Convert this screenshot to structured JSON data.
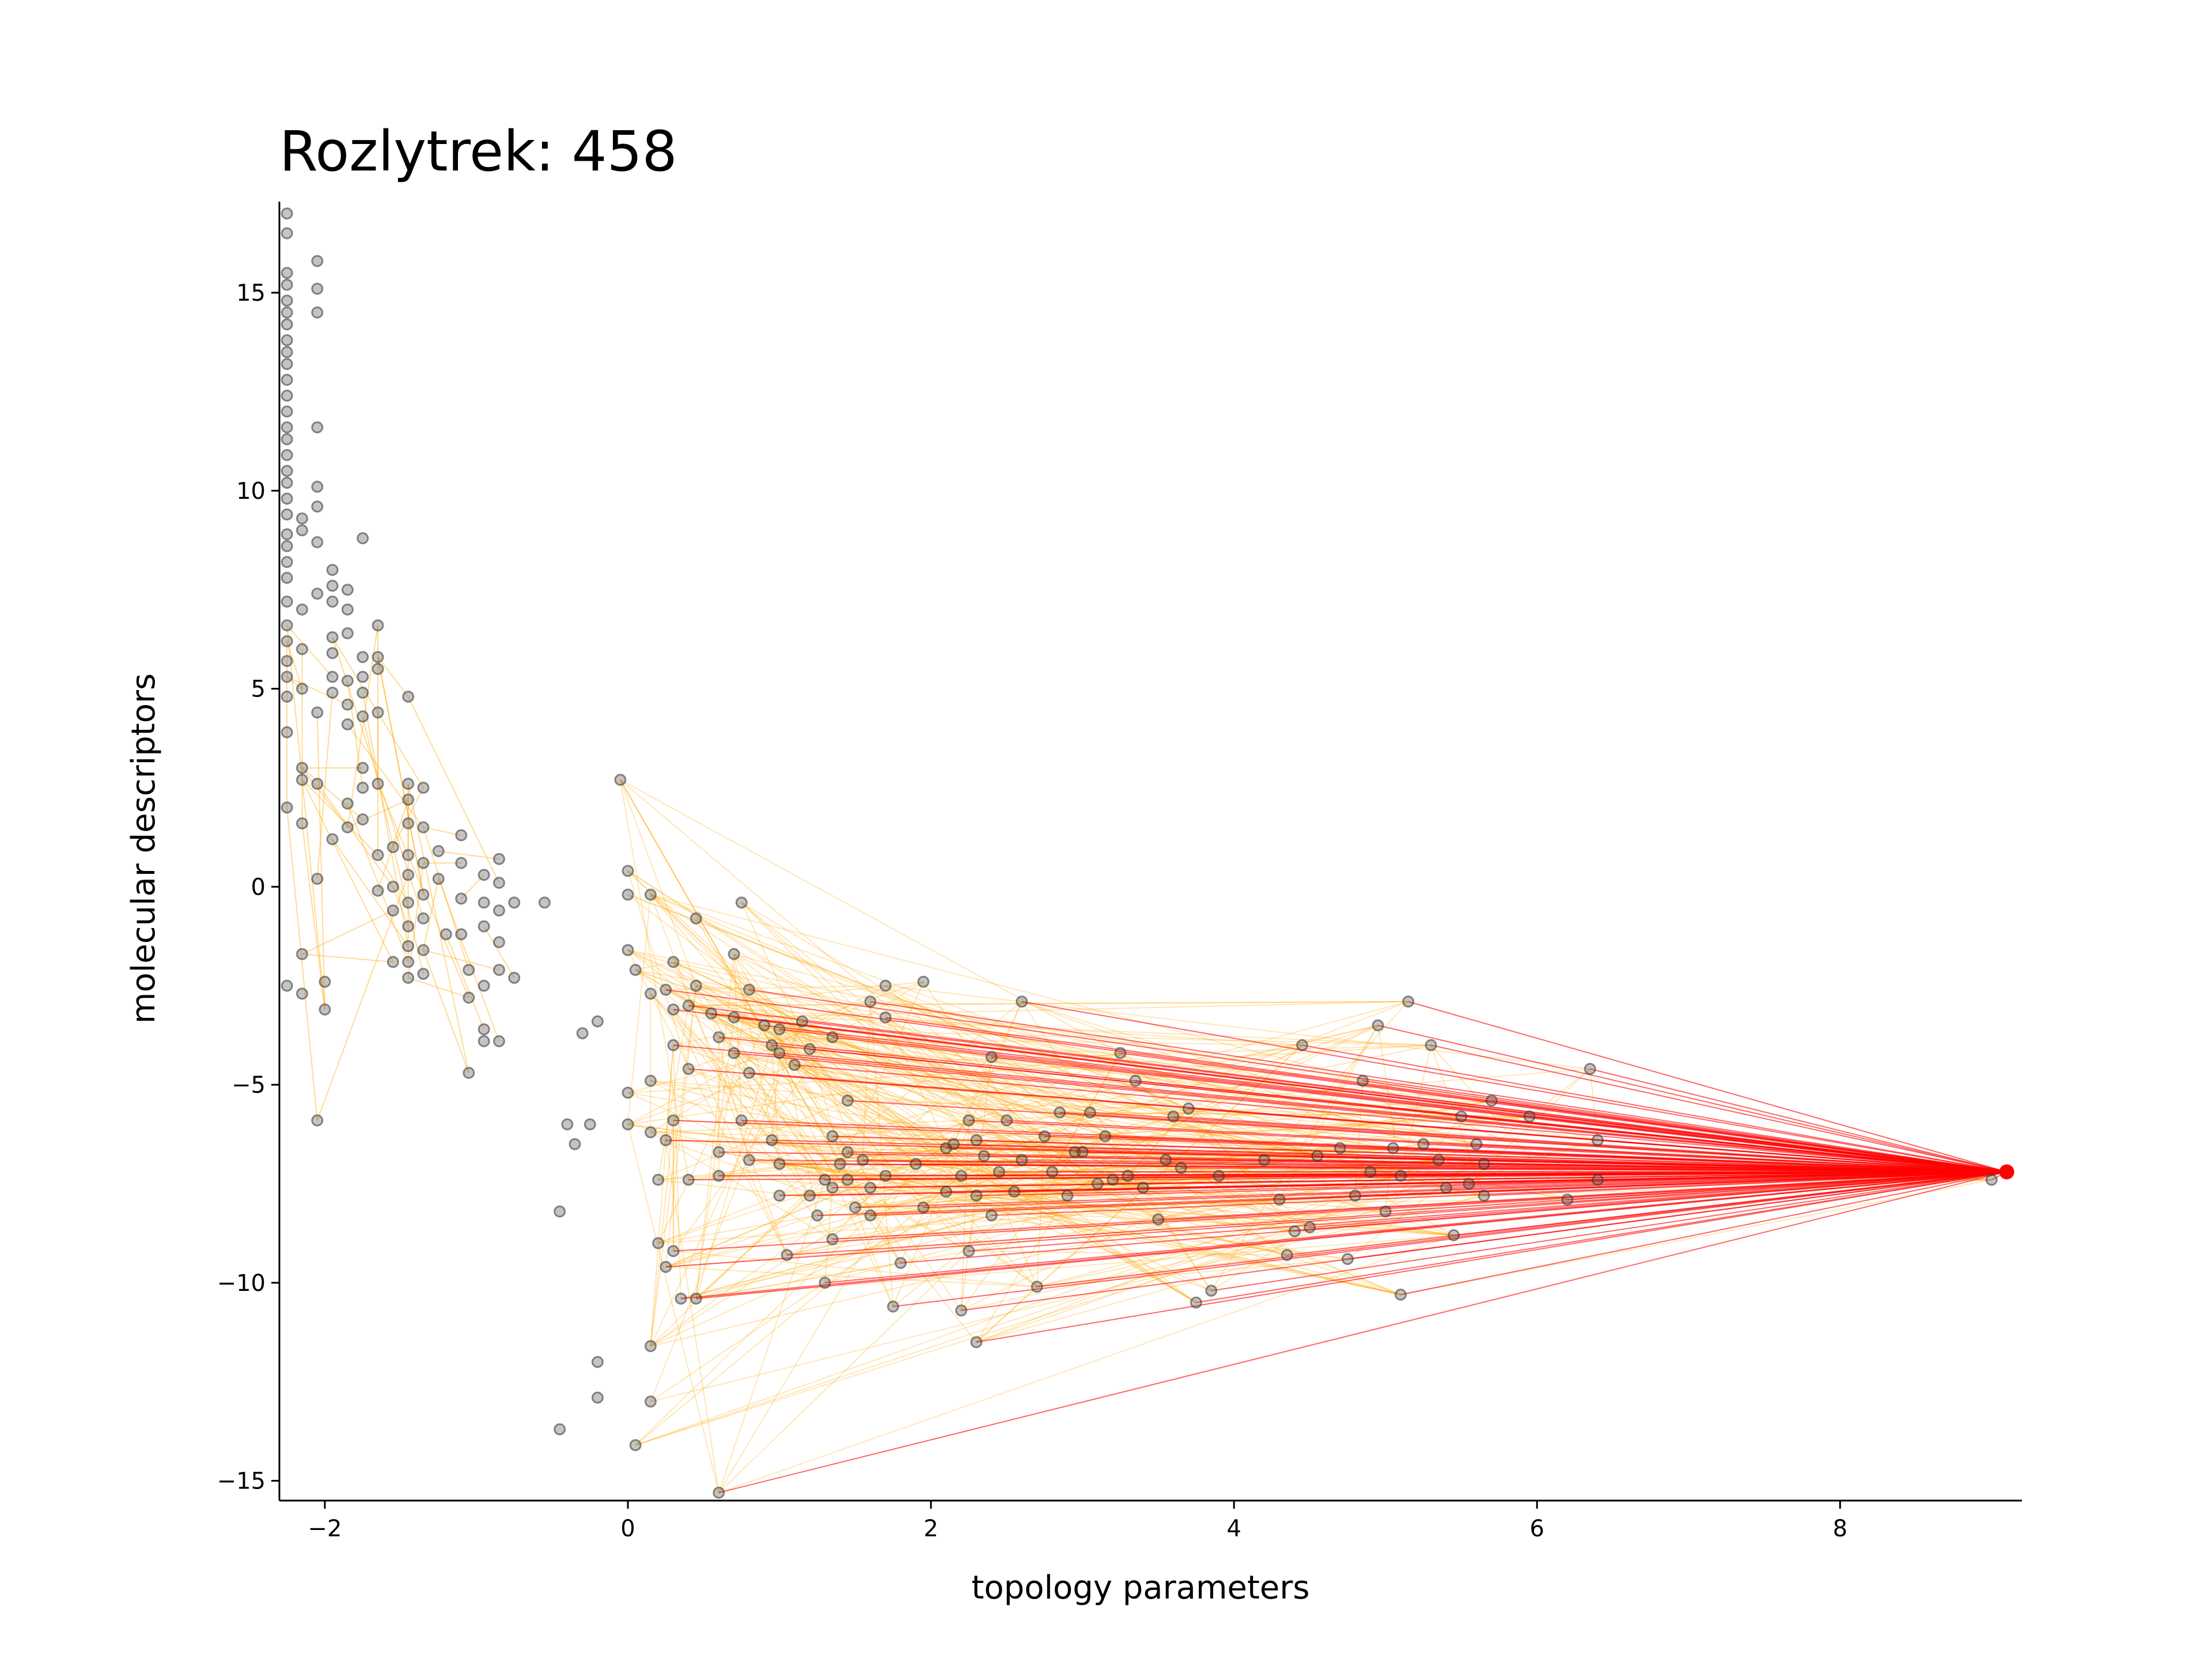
{
  "chart_data": {
    "type": "scatter",
    "title": "Rozlytrek: 458",
    "xlabel": "topology parameters",
    "ylabel": "molecular descriptors",
    "xlim": [
      -2.3,
      9.2
    ],
    "ylim": [
      -15.5,
      17.3
    ],
    "x_ticks": [
      -2,
      0,
      2,
      4,
      6,
      8
    ],
    "y_ticks": [
      15,
      10,
      5,
      0,
      -5,
      -10,
      -15
    ],
    "x_tick_labels": [
      "−2",
      "0",
      "2",
      "4",
      "6",
      "8"
    ],
    "y_tick_labels": [
      "15",
      "10",
      "5",
      "0",
      "−5",
      "−10",
      "−15"
    ],
    "grid": false,
    "legend": "none",
    "colors": {
      "points": "#000000",
      "highlight": "#ff0000",
      "edges_weak": "#ffa500",
      "edges_strong": "#ff0000"
    },
    "highlight_point": {
      "x": 9.1,
      "y": -7.2
    },
    "series": [
      {
        "values": [
          [
            -2.25,
            17.0
          ],
          [
            -2.25,
            16.5
          ],
          [
            -2.25,
            15.5
          ],
          [
            -2.25,
            15.2
          ],
          [
            -2.25,
            14.8
          ],
          [
            -2.25,
            14.5
          ],
          [
            -2.25,
            14.2
          ],
          [
            -2.25,
            13.8
          ],
          [
            -2.25,
            13.5
          ],
          [
            -2.25,
            13.2
          ],
          [
            -2.25,
            12.8
          ],
          [
            -2.25,
            12.4
          ],
          [
            -2.25,
            12.0
          ],
          [
            -2.25,
            11.6
          ],
          [
            -2.25,
            11.3
          ],
          [
            -2.25,
            10.9
          ],
          [
            -2.25,
            10.5
          ],
          [
            -2.25,
            10.2
          ],
          [
            -2.25,
            9.8
          ],
          [
            -2.25,
            9.4
          ],
          [
            -2.25,
            8.9
          ],
          [
            -2.25,
            8.6
          ],
          [
            -2.25,
            8.2
          ],
          [
            -2.25,
            7.8
          ],
          [
            -2.25,
            7.2
          ],
          [
            -2.25,
            6.6
          ],
          [
            -2.25,
            6.2
          ],
          [
            -2.25,
            5.7
          ],
          [
            -2.25,
            5.3
          ],
          [
            -2.25,
            4.8
          ],
          [
            -2.25,
            3.9
          ],
          [
            -2.25,
            2.0
          ],
          [
            -2.25,
            -2.5
          ],
          [
            -2.05,
            15.8
          ],
          [
            -2.05,
            15.1
          ],
          [
            -2.05,
            14.5
          ],
          [
            -2.05,
            11.6
          ],
          [
            -2.05,
            10.1
          ],
          [
            -2.05,
            9.6
          ],
          [
            -2.05,
            8.7
          ],
          [
            -2.05,
            7.4
          ],
          [
            -2.05,
            4.4
          ],
          [
            -2.05,
            2.6
          ],
          [
            -2.05,
            0.2
          ],
          [
            -2.05,
            -5.9
          ],
          [
            -2.15,
            9.3
          ],
          [
            -2.15,
            9.0
          ],
          [
            -2.15,
            7.0
          ],
          [
            -2.15,
            6.0
          ],
          [
            -2.15,
            5.0
          ],
          [
            -2.15,
            3.0
          ],
          [
            -2.15,
            2.7
          ],
          [
            -2.15,
            1.6
          ],
          [
            -2.15,
            -1.7
          ],
          [
            -2.15,
            -2.7
          ],
          [
            -1.95,
            8.0
          ],
          [
            -1.95,
            7.6
          ],
          [
            -1.95,
            7.2
          ],
          [
            -1.95,
            6.3
          ],
          [
            -1.95,
            5.9
          ],
          [
            -1.95,
            5.3
          ],
          [
            -1.95,
            4.9
          ],
          [
            -1.95,
            1.2
          ],
          [
            -2.0,
            -2.4
          ],
          [
            -2.0,
            -3.1
          ],
          [
            -1.85,
            7.5
          ],
          [
            -1.85,
            7.0
          ],
          [
            -1.85,
            6.4
          ],
          [
            -1.85,
            5.2
          ],
          [
            -1.85,
            4.6
          ],
          [
            -1.85,
            4.1
          ],
          [
            -1.85,
            2.1
          ],
          [
            -1.85,
            1.5
          ],
          [
            -1.75,
            8.8
          ],
          [
            -1.75,
            5.8
          ],
          [
            -1.75,
            5.3
          ],
          [
            -1.75,
            4.9
          ],
          [
            -1.75,
            4.3
          ],
          [
            -1.75,
            3.0
          ],
          [
            -1.75,
            2.5
          ],
          [
            -1.75,
            1.7
          ],
          [
            -1.65,
            6.6
          ],
          [
            -1.65,
            5.8
          ],
          [
            -1.65,
            5.5
          ],
          [
            -1.65,
            4.4
          ],
          [
            -1.65,
            2.6
          ],
          [
            -1.65,
            0.8
          ],
          [
            -1.65,
            -0.1
          ],
          [
            -1.55,
            1.0
          ],
          [
            -1.55,
            0.0
          ],
          [
            -1.55,
            -1.9
          ],
          [
            -1.55,
            -0.6
          ],
          [
            -1.45,
            2.6
          ],
          [
            -1.45,
            2.2
          ],
          [
            -1.45,
            1.6
          ],
          [
            -1.45,
            0.8
          ],
          [
            -1.45,
            0.3
          ],
          [
            -1.45,
            -0.4
          ],
          [
            -1.45,
            -1.0
          ],
          [
            -1.45,
            -1.5
          ],
          [
            -1.45,
            -1.9
          ],
          [
            -1.45,
            -2.3
          ],
          [
            -1.45,
            4.8
          ],
          [
            -1.35,
            2.5
          ],
          [
            -1.35,
            1.5
          ],
          [
            -1.35,
            0.6
          ],
          [
            -1.35,
            -0.2
          ],
          [
            -1.35,
            -0.8
          ],
          [
            -1.35,
            -1.6
          ],
          [
            -1.35,
            -2.2
          ],
          [
            -1.25,
            0.9
          ],
          [
            -1.25,
            0.2
          ],
          [
            -1.2,
            -1.2
          ],
          [
            -1.1,
            1.3
          ],
          [
            -1.1,
            0.6
          ],
          [
            -1.1,
            -0.3
          ],
          [
            -1.1,
            -1.2
          ],
          [
            -1.05,
            -2.1
          ],
          [
            -1.05,
            -2.8
          ],
          [
            -1.05,
            -4.7
          ],
          [
            -0.95,
            0.3
          ],
          [
            -0.95,
            -0.4
          ],
          [
            -0.95,
            -1.0
          ],
          [
            -0.95,
            -2.5
          ],
          [
            -0.95,
            -3.6
          ],
          [
            -0.95,
            -3.9
          ],
          [
            -0.85,
            0.7
          ],
          [
            -0.85,
            0.1
          ],
          [
            -0.85,
            -0.6
          ],
          [
            -0.85,
            -1.4
          ],
          [
            -0.85,
            -2.1
          ],
          [
            -0.85,
            -3.9
          ],
          [
            -0.75,
            -0.4
          ],
          [
            -0.75,
            -2.3
          ],
          [
            -0.55,
            -0.4
          ],
          [
            -0.4,
            -6.0
          ],
          [
            -0.35,
            -6.5
          ],
          [
            -0.3,
            -3.7
          ],
          [
            -0.25,
            -6.0
          ],
          [
            -0.2,
            -3.4
          ],
          [
            -0.45,
            -8.2
          ],
          [
            -0.45,
            -13.7
          ],
          [
            -0.2,
            -12.0
          ],
          [
            -0.2,
            -12.9
          ],
          [
            -0.05,
            2.7
          ],
          [
            0.0,
            0.4
          ],
          [
            0.0,
            -0.2
          ],
          [
            0.0,
            -1.6
          ],
          [
            0.0,
            -5.2
          ],
          [
            0.0,
            -6.0
          ],
          [
            0.05,
            -2.1
          ],
          [
            0.05,
            -14.1
          ],
          [
            0.15,
            -0.2
          ],
          [
            0.15,
            -2.7
          ],
          [
            0.15,
            -4.9
          ],
          [
            0.15,
            -6.2
          ],
          [
            0.15,
            -11.6
          ],
          [
            0.15,
            -13.0
          ],
          [
            0.2,
            -7.4
          ],
          [
            0.2,
            -9.0
          ],
          [
            0.25,
            -2.6
          ],
          [
            0.25,
            -6.4
          ],
          [
            0.25,
            -9.6
          ],
          [
            0.3,
            -1.9
          ],
          [
            0.3,
            -3.1
          ],
          [
            0.3,
            -4.0
          ],
          [
            0.3,
            -5.9
          ],
          [
            0.3,
            -9.2
          ],
          [
            0.35,
            -10.4
          ],
          [
            0.4,
            -3.0
          ],
          [
            0.4,
            -4.6
          ],
          [
            0.4,
            -7.4
          ],
          [
            0.45,
            -0.8
          ],
          [
            0.45,
            -10.4
          ],
          [
            0.45,
            -2.5
          ],
          [
            0.55,
            -3.2
          ],
          [
            0.6,
            -3.8
          ],
          [
            0.6,
            -6.7
          ],
          [
            0.6,
            -7.3
          ],
          [
            0.6,
            -15.3
          ],
          [
            0.7,
            -1.7
          ],
          [
            0.7,
            -3.3
          ],
          [
            0.7,
            -4.2
          ],
          [
            0.75,
            -5.9
          ],
          [
            0.75,
            -0.4
          ],
          [
            0.8,
            -2.6
          ],
          [
            0.8,
            -4.7
          ],
          [
            0.8,
            -6.9
          ],
          [
            0.9,
            -3.5
          ],
          [
            0.95,
            -4.0
          ],
          [
            0.95,
            -6.4
          ],
          [
            1.0,
            -3.6
          ],
          [
            1.0,
            -4.2
          ],
          [
            1.0,
            -7.0
          ],
          [
            1.0,
            -7.8
          ],
          [
            1.05,
            -9.3
          ],
          [
            1.1,
            -4.5
          ],
          [
            1.15,
            -3.4
          ],
          [
            1.2,
            -4.1
          ],
          [
            1.2,
            -7.8
          ],
          [
            1.25,
            -8.3
          ],
          [
            1.3,
            -10.0
          ],
          [
            1.3,
            -7.4
          ],
          [
            1.35,
            -3.8
          ],
          [
            1.35,
            -6.3
          ],
          [
            1.35,
            -7.6
          ],
          [
            1.35,
            -8.9
          ],
          [
            1.4,
            -7.0
          ],
          [
            1.45,
            -5.4
          ],
          [
            1.45,
            -6.7
          ],
          [
            1.45,
            -7.4
          ],
          [
            1.5,
            -8.1
          ],
          [
            1.55,
            -6.9
          ],
          [
            1.6,
            -2.9
          ],
          [
            1.6,
            -7.6
          ],
          [
            1.6,
            -8.3
          ],
          [
            1.7,
            -2.5
          ],
          [
            1.7,
            -3.3
          ],
          [
            1.7,
            -7.3
          ],
          [
            1.75,
            -10.6
          ],
          [
            1.8,
            -9.5
          ],
          [
            1.9,
            -7.0
          ],
          [
            1.95,
            -8.1
          ],
          [
            1.95,
            -2.4
          ],
          [
            2.1,
            -6.6
          ],
          [
            2.1,
            -7.7
          ],
          [
            2.15,
            -6.5
          ],
          [
            2.2,
            -7.3
          ],
          [
            2.2,
            -10.7
          ],
          [
            2.25,
            -5.9
          ],
          [
            2.25,
            -9.2
          ],
          [
            2.3,
            -6.4
          ],
          [
            2.3,
            -7.8
          ],
          [
            2.3,
            -11.5
          ],
          [
            2.35,
            -6.8
          ],
          [
            2.4,
            -4.3
          ],
          [
            2.4,
            -8.3
          ],
          [
            2.45,
            -7.2
          ],
          [
            2.5,
            -5.9
          ],
          [
            2.55,
            -7.7
          ],
          [
            2.6,
            -6.9
          ],
          [
            2.6,
            -2.9
          ],
          [
            2.7,
            -10.1
          ],
          [
            2.75,
            -6.3
          ],
          [
            2.8,
            -7.2
          ],
          [
            2.85,
            -5.7
          ],
          [
            2.9,
            -7.8
          ],
          [
            2.95,
            -6.7
          ],
          [
            3.0,
            -6.7
          ],
          [
            3.05,
            -5.7
          ],
          [
            3.1,
            -7.5
          ],
          [
            3.15,
            -6.3
          ],
          [
            3.2,
            -7.4
          ],
          [
            3.25,
            -4.2
          ],
          [
            3.3,
            -7.3
          ],
          [
            3.35,
            -4.9
          ],
          [
            3.4,
            -7.6
          ],
          [
            3.5,
            -8.4
          ],
          [
            3.55,
            -6.9
          ],
          [
            3.6,
            -5.8
          ],
          [
            3.65,
            -7.1
          ],
          [
            3.7,
            -5.6
          ],
          [
            3.75,
            -10.5
          ],
          [
            3.85,
            -10.2
          ],
          [
            3.9,
            -7.3
          ],
          [
            4.2,
            -6.9
          ],
          [
            4.3,
            -7.9
          ],
          [
            4.35,
            -9.3
          ],
          [
            4.4,
            -8.7
          ],
          [
            4.45,
            -4.0
          ],
          [
            4.5,
            -8.6
          ],
          [
            4.55,
            -6.8
          ],
          [
            4.7,
            -6.6
          ],
          [
            4.75,
            -9.4
          ],
          [
            4.8,
            -7.8
          ],
          [
            4.85,
            -4.9
          ],
          [
            4.9,
            -7.2
          ],
          [
            4.95,
            -3.5
          ],
          [
            5.0,
            -8.2
          ],
          [
            5.05,
            -6.6
          ],
          [
            5.1,
            -10.3
          ],
          [
            5.1,
            -7.3
          ],
          [
            5.15,
            -2.9
          ],
          [
            5.25,
            -6.5
          ],
          [
            5.3,
            -4.0
          ],
          [
            5.35,
            -6.9
          ],
          [
            5.4,
            -7.6
          ],
          [
            5.45,
            -8.8
          ],
          [
            5.5,
            -5.8
          ],
          [
            5.55,
            -7.5
          ],
          [
            5.6,
            -6.5
          ],
          [
            5.65,
            -7.0
          ],
          [
            5.65,
            -7.8
          ],
          [
            5.7,
            -5.4
          ],
          [
            5.95,
            -5.8
          ],
          [
            6.2,
            -7.9
          ],
          [
            6.35,
            -4.6
          ],
          [
            6.4,
            -6.4
          ],
          [
            6.4,
            -7.4
          ],
          [
            9.0,
            -7.4
          ]
        ]
      }
    ]
  }
}
